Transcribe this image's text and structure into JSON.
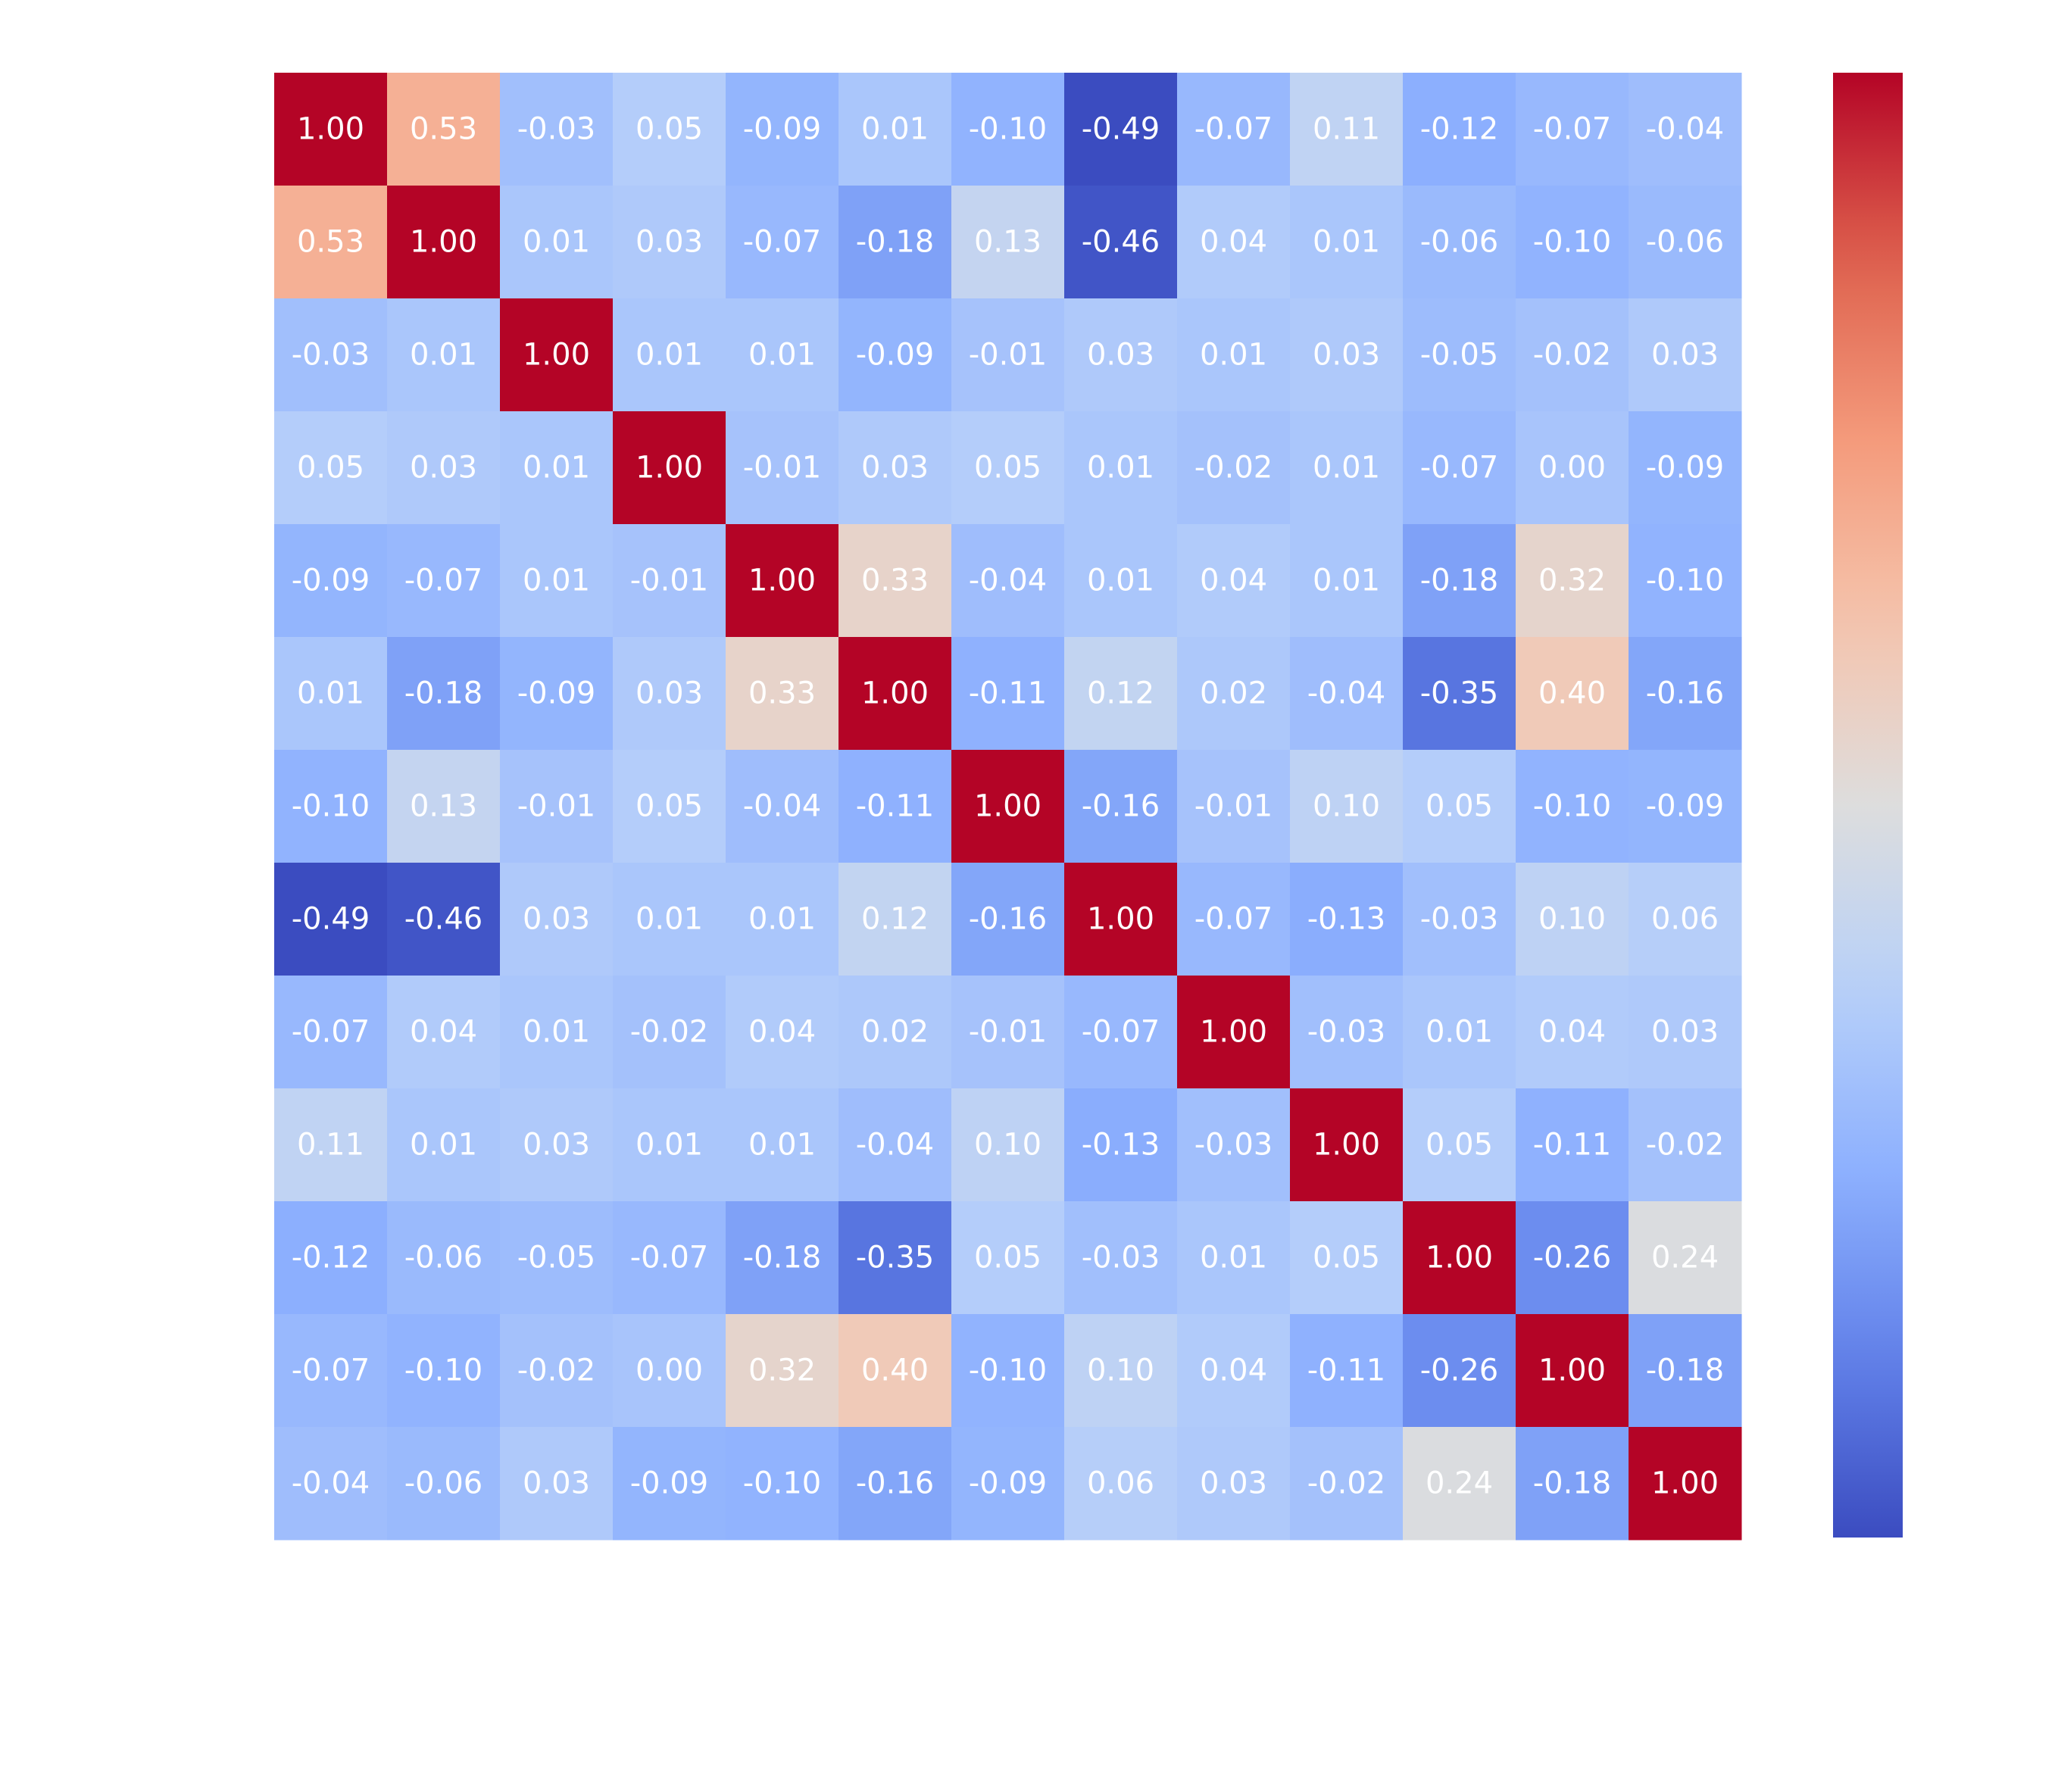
{
  "chart_data": {
    "type": "heatmap",
    "colormap": "coolwarm",
    "annotation_text_color": "#ffffff",
    "rows": 13,
    "cols": 13,
    "values": [
      [
        1.0,
        0.53,
        -0.03,
        0.05,
        -0.09,
        0.01,
        -0.1,
        -0.49,
        -0.07,
        0.11,
        -0.12,
        -0.07,
        -0.04
      ],
      [
        0.53,
        1.0,
        0.01,
        0.03,
        -0.07,
        -0.18,
        0.13,
        -0.46,
        0.04,
        0.01,
        -0.06,
        -0.1,
        -0.06
      ],
      [
        -0.03,
        0.01,
        1.0,
        0.01,
        0.01,
        -0.09,
        -0.01,
        0.03,
        0.01,
        0.03,
        -0.05,
        -0.02,
        0.03
      ],
      [
        0.05,
        0.03,
        0.01,
        1.0,
        -0.01,
        0.03,
        0.05,
        0.01,
        -0.02,
        0.01,
        -0.07,
        0.0,
        -0.09
      ],
      [
        -0.09,
        -0.07,
        0.01,
        -0.01,
        1.0,
        0.33,
        -0.04,
        0.01,
        0.04,
        0.01,
        -0.18,
        0.32,
        -0.1
      ],
      [
        0.01,
        -0.18,
        -0.09,
        0.03,
        0.33,
        1.0,
        -0.11,
        0.12,
        0.02,
        -0.04,
        -0.35,
        0.4,
        -0.16
      ],
      [
        -0.1,
        0.13,
        -0.01,
        0.05,
        -0.04,
        -0.11,
        1.0,
        -0.16,
        -0.01,
        0.1,
        0.05,
        -0.1,
        -0.09
      ],
      [
        -0.49,
        -0.46,
        0.03,
        0.01,
        0.01,
        0.12,
        -0.16,
        1.0,
        -0.07,
        -0.13,
        -0.03,
        0.1,
        0.06
      ],
      [
        -0.07,
        0.04,
        0.01,
        -0.02,
        0.04,
        0.02,
        -0.01,
        -0.07,
        1.0,
        -0.03,
        0.01,
        0.04,
        0.03
      ],
      [
        0.11,
        0.01,
        0.03,
        0.01,
        0.01,
        -0.04,
        0.1,
        -0.13,
        -0.03,
        1.0,
        0.05,
        -0.11,
        -0.02
      ],
      [
        -0.12,
        -0.06,
        -0.05,
        -0.07,
        -0.18,
        -0.35,
        0.05,
        -0.03,
        0.01,
        0.05,
        1.0,
        -0.26,
        0.24
      ],
      [
        -0.07,
        -0.1,
        -0.02,
        0.0,
        0.32,
        0.4,
        -0.1,
        0.1,
        0.04,
        -0.11,
        -0.26,
        1.0,
        -0.18
      ],
      [
        -0.04,
        -0.06,
        0.03,
        -0.09,
        -0.1,
        -0.16,
        -0.09,
        0.06,
        0.03,
        -0.02,
        0.24,
        -0.18,
        1.0
      ]
    ],
    "color_scale": {
      "min": -0.49,
      "max": 1.0
    },
    "colorbar": true,
    "tick_labels_visible": false,
    "grid": false
  }
}
